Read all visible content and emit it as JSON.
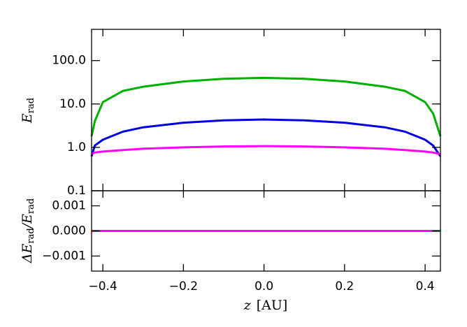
{
  "chart_data": [
    {
      "type": "line",
      "yscale": "log",
      "ylabel": [
        "E",
        "rad"
      ],
      "x": [
        -0.428,
        -0.42,
        -0.4,
        -0.35,
        -0.3,
        -0.2,
        -0.1,
        0,
        0.1,
        0.2,
        0.3,
        0.35,
        0.4,
        0.42,
        0.438
      ],
      "series": [
        {
          "color": "#00b000",
          "values": [
            1.8,
            4,
            11,
            20,
            25,
            33,
            38,
            40,
            38,
            33,
            25,
            20,
            11,
            6,
            1.8
          ]
        },
        {
          "color": "#0000e0",
          "values": [
            0.62,
            1.1,
            1.5,
            2.3,
            2.9,
            3.7,
            4.2,
            4.4,
            4.2,
            3.7,
            2.9,
            2.3,
            1.5,
            1.1,
            0.62
          ]
        },
        {
          "color": "#ff00ff",
          "values": [
            0.7,
            0.76,
            0.8,
            0.87,
            0.93,
            1.0,
            1.05,
            1.07,
            1.05,
            1.0,
            0.93,
            0.87,
            0.8,
            0.76,
            0.7
          ]
        }
      ],
      "xlim": [
        -0.428,
        0.438
      ],
      "xticks": [
        -0.4,
        -0.2,
        0,
        0.2,
        0.4
      ],
      "ylim": [
        0.1,
        525
      ],
      "yticks": [
        {
          "value": 0.1,
          "label": "0.1"
        },
        {
          "value": 1,
          "label": "1.0"
        },
        {
          "value": 10,
          "label": "10.0"
        },
        {
          "value": 100,
          "label": "100.0"
        }
      ]
    },
    {
      "type": "line",
      "ylabel": [
        "ΔE",
        "rad",
        "/E",
        "rad"
      ],
      "xlabel": [
        "z",
        "[AU]"
      ],
      "x": [
        -0.428,
        0,
        0.438
      ],
      "series": [
        {
          "color": "#00b000",
          "values": [
            0,
            0,
            0
          ]
        },
        {
          "color": "#0000e0",
          "values": [
            0,
            0,
            0
          ]
        },
        {
          "color": "#ff00ff",
          "values": [
            0,
            0,
            0
          ]
        }
      ],
      "xlim": [
        -0.428,
        0.438
      ],
      "xticks": [
        {
          "value": -0.4,
          "label": "−0.4"
        },
        {
          "value": -0.2,
          "label": "−0.2"
        },
        {
          "value": 0,
          "label": "0.0"
        },
        0.2,
        0.4
      ],
      "ylim": [
        -0.0016,
        0.0016
      ],
      "yticks": [
        {
          "value": -0.001,
          "label": "−0.001"
        },
        {
          "value": 0,
          "label": "0.000"
        },
        0.001
      ]
    }
  ]
}
